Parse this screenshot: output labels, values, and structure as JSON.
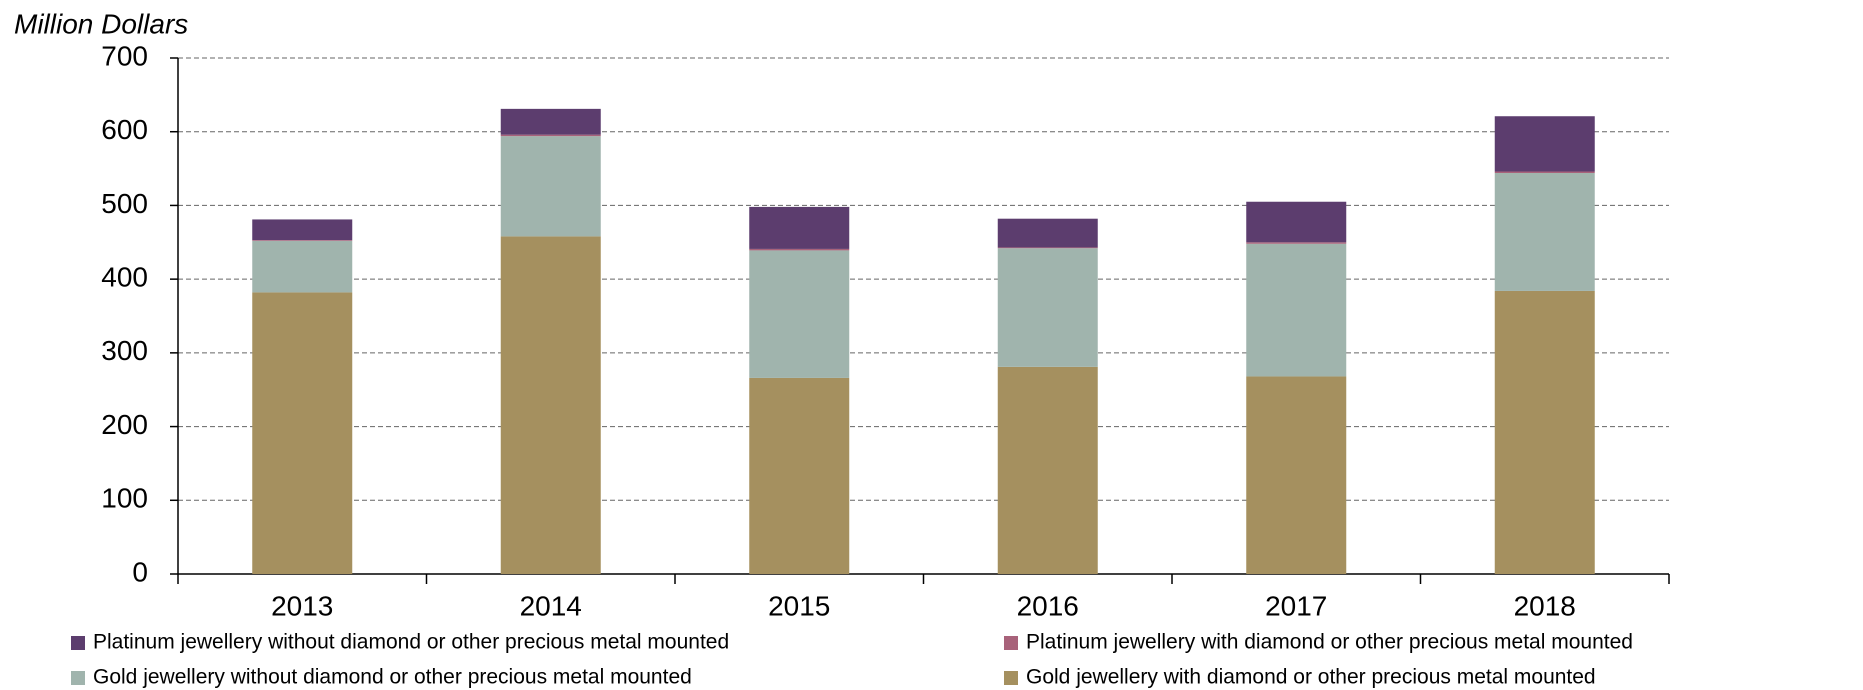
{
  "chart_data": {
    "type": "bar",
    "stacked": true,
    "y_label": "Million Dollars",
    "categories": [
      "2013",
      "2014",
      "2015",
      "2016",
      "2017",
      "2018"
    ],
    "series": [
      {
        "name": "Gold jewellery with diamond or other precious metal mounted",
        "color": "#a5905f",
        "values": [
          382,
          458,
          266,
          281,
          268,
          384
        ]
      },
      {
        "name": "Gold jewellery without diamond or other precious metal mounted",
        "color": "#a0b4ad",
        "values": [
          70,
          136,
          173,
          161,
          180,
          160
        ]
      },
      {
        "name": "Platinum jewellery with diamond or other precious metal mounted",
        "color": "#a8627a",
        "values": [
          1,
          2,
          2,
          1,
          2,
          2
        ]
      },
      {
        "name": "Platinum jewellery without diamond or other precious metal mounted",
        "color": "#5c3d6e",
        "values": [
          28,
          35,
          57,
          39,
          55,
          75
        ]
      }
    ],
    "legend_order": [
      3,
      2,
      1,
      0
    ],
    "ylim": [
      0,
      700
    ],
    "yticks": [
      0,
      100,
      200,
      300,
      400,
      500,
      600,
      700
    ],
    "grid": true
  }
}
